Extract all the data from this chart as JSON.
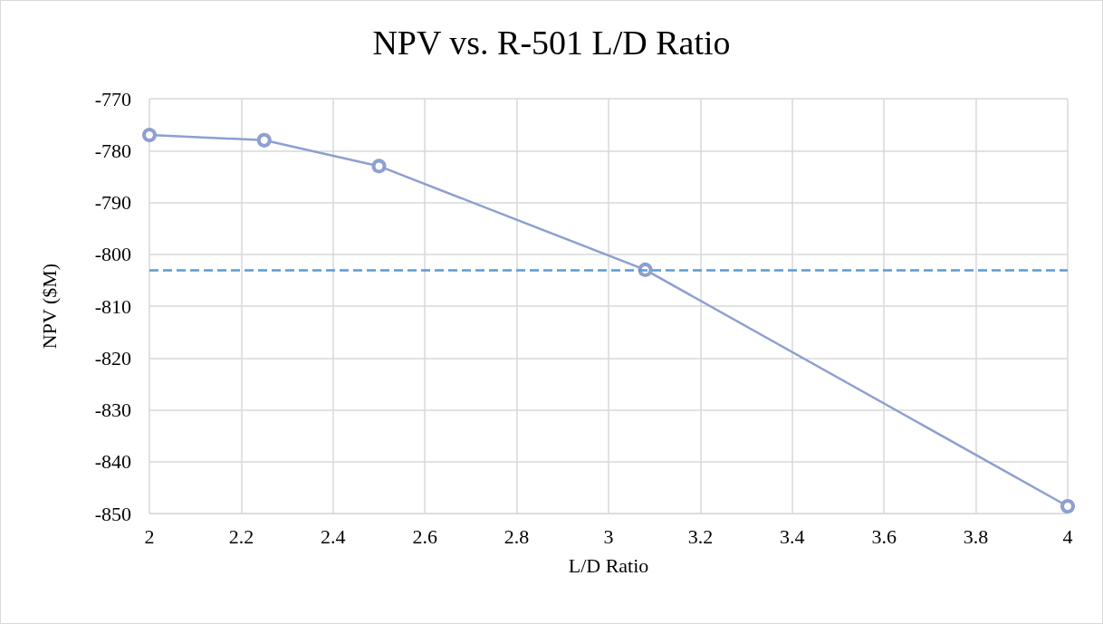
{
  "chart_data": {
    "type": "line",
    "title": "NPV vs. R-501 L/D Ratio",
    "xlabel": "L/D Ratio",
    "ylabel": "NPV ($M)",
    "x": [
      2,
      2.25,
      2.5,
      3.08,
      4
    ],
    "series": [
      {
        "color": "#8e9fd0",
        "values": [
          -777,
          -778,
          -783,
          -803,
          -848.6
        ]
      }
    ],
    "xlim": [
      2,
      4
    ],
    "xticks": [
      2,
      2.2,
      2.4,
      2.6,
      2.8,
      3,
      3.2,
      3.4,
      3.6,
      3.8,
      4
    ],
    "ylim": [
      -850,
      -770
    ],
    "yticks": [
      -850,
      -840,
      -830,
      -820,
      -810,
      -800,
      -790,
      -780,
      -770
    ],
    "ref_lines": [
      {
        "axis": "y",
        "value": -803,
        "color": "#5b9bd5",
        "line_style": "dashed"
      }
    ],
    "grid": true,
    "marker": "circle",
    "line_style": "solid"
  }
}
